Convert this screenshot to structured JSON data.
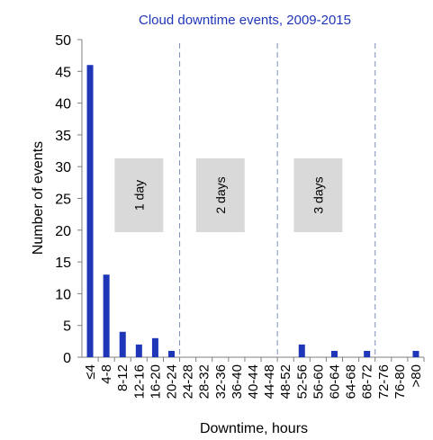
{
  "chart_data": {
    "type": "bar",
    "title": "Cloud downtime events, 2009-2015",
    "xlabel": "Downtime, hours",
    "ylabel": "Number of events",
    "ylim": [
      0,
      50
    ],
    "yticks": [
      0,
      5,
      10,
      15,
      20,
      25,
      30,
      35,
      40,
      45,
      50
    ],
    "grid": false,
    "categories": [
      "≤4",
      "4-8",
      "8-12",
      "12-16",
      "16-20",
      "20-24",
      "24-28",
      "28-32",
      "32-36",
      "36-40",
      "40-44",
      "44-48",
      "48-52",
      "52-56",
      "56-60",
      "60-64",
      "64-68",
      "68-72",
      "72-76",
      "76-80",
      ">80"
    ],
    "values": [
      46,
      13,
      4,
      2,
      3,
      1,
      0,
      0,
      0,
      0,
      0,
      0,
      0,
      2,
      0,
      1,
      0,
      1,
      0,
      0,
      1
    ],
    "bar_color": "#1f36b8",
    "title_color": "#1f36b8",
    "annotations": [
      {
        "text": "1 day",
        "boundary_after_index": 5,
        "box_centered_on_category_index": 3
      },
      {
        "text": "2 days",
        "boundary_after_index": 11,
        "box_centered_on_category_index": 8
      },
      {
        "text": "3 days",
        "boundary_after_index": 17,
        "box_centered_on_category_index": 14
      }
    ]
  }
}
